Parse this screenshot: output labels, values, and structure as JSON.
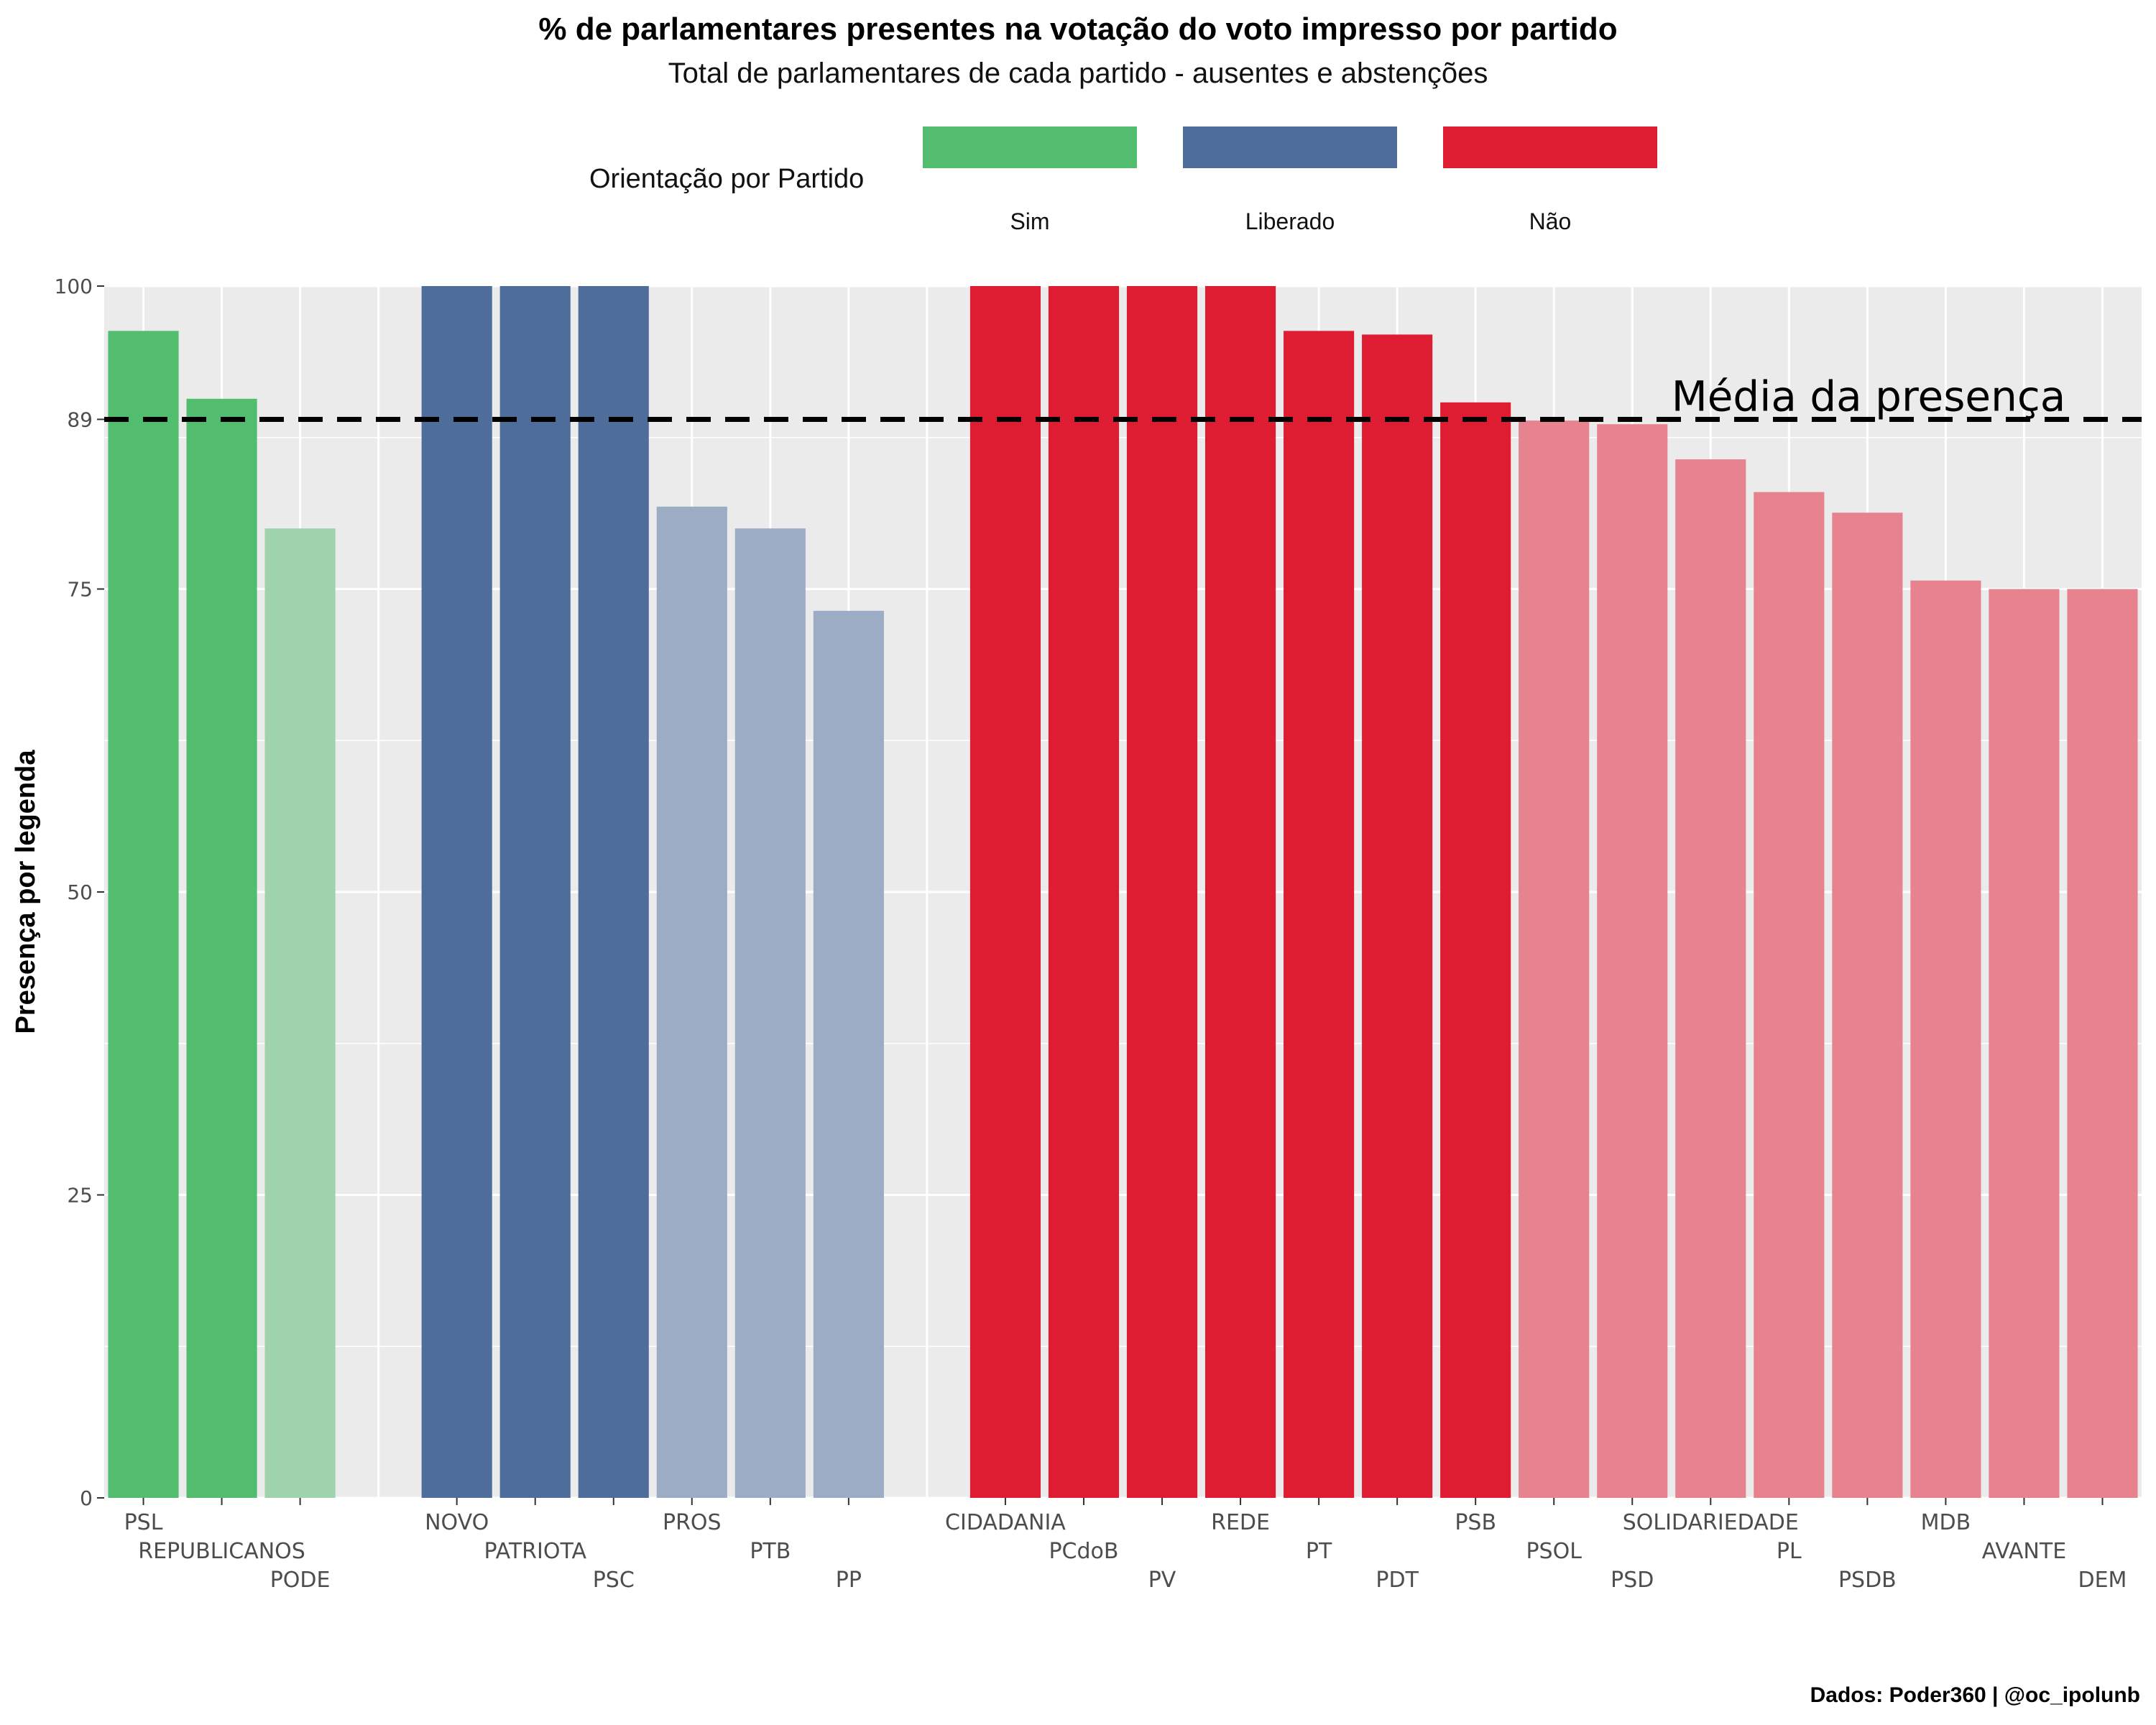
{
  "title": "% de parlamentares presentes na votação do voto impresso por partido",
  "subtitle": "Total de parlamentares de cada partido - ausentes e abstenções",
  "caption": "Dados: Poder360 | @oc_ipolunb",
  "legend": {
    "title": "Orientação por Partido",
    "items": [
      {
        "label": "Sim",
        "color": "#52BD6F"
      },
      {
        "label": "Liberado",
        "color": "#4E6D9B"
      },
      {
        "label": "Não",
        "color": "#DF1D32"
      }
    ]
  },
  "chart_data": {
    "type": "bar",
    "ylabel": "Presença por legenda",
    "xlabel": "",
    "ylim": [
      0,
      100
    ],
    "yticks": [
      0,
      25,
      50,
      75,
      89,
      100
    ],
    "grid": true,
    "legend_position": "top",
    "reference_line": {
      "value": 89,
      "label": "Média da presença",
      "style": "dashed"
    },
    "bars": [
      {
        "party": "PSL",
        "value": 96.3,
        "orientation": "Sim"
      },
      {
        "party": "REPUBLICANOS",
        "value": 90.7,
        "orientation": "Sim"
      },
      {
        "party": "PODE",
        "value": 80.0,
        "orientation": "Sim"
      },
      {
        "party": "NOVO",
        "value": 100,
        "orientation": "Liberado"
      },
      {
        "party": "PATRIOTA",
        "value": 100,
        "orientation": "Liberado"
      },
      {
        "party": "PSC",
        "value": 100,
        "orientation": "Liberado"
      },
      {
        "party": "PROS",
        "value": 81.8,
        "orientation": "Liberado"
      },
      {
        "party": "PTB",
        "value": 80.0,
        "orientation": "Liberado"
      },
      {
        "party": "PP",
        "value": 73.2,
        "orientation": "Liberado"
      },
      {
        "party": "CIDADANIA",
        "value": 100,
        "orientation": "Não"
      },
      {
        "party": "PCdoB",
        "value": 100,
        "orientation": "Não"
      },
      {
        "party": "PV",
        "value": 100,
        "orientation": "Não"
      },
      {
        "party": "REDE",
        "value": 100,
        "orientation": "Não"
      },
      {
        "party": "PT",
        "value": 96.3,
        "orientation": "Não"
      },
      {
        "party": "PDT",
        "value": 96.0,
        "orientation": "Não"
      },
      {
        "party": "PSB",
        "value": 90.4,
        "orientation": "Não"
      },
      {
        "party": "PSOL",
        "value": 88.9,
        "orientation": "Não"
      },
      {
        "party": "PSD",
        "value": 88.6,
        "orientation": "Não"
      },
      {
        "party": "SOLIDARIEDADE",
        "value": 85.7,
        "orientation": "Não"
      },
      {
        "party": "PL",
        "value": 83.0,
        "orientation": "Não"
      },
      {
        "party": "PSDB",
        "value": 81.3,
        "orientation": "Não"
      },
      {
        "party": "MDB",
        "value": 75.7,
        "orientation": "Não"
      },
      {
        "party": "AVANTE",
        "value": 75.0,
        "orientation": "Não"
      },
      {
        "party": "DEM",
        "value": 75.0,
        "orientation": "Não"
      }
    ],
    "colors": {
      "Sim": {
        "above_mean": "#52BD6F",
        "below_mean": "#9FD3AD"
      },
      "Liberado": {
        "above_mean": "#4E6D9B",
        "below_mean": "#9DACC5"
      },
      "Não": {
        "above_mean": "#DF1D32",
        "below_mean": "#E6838E"
      }
    }
  }
}
